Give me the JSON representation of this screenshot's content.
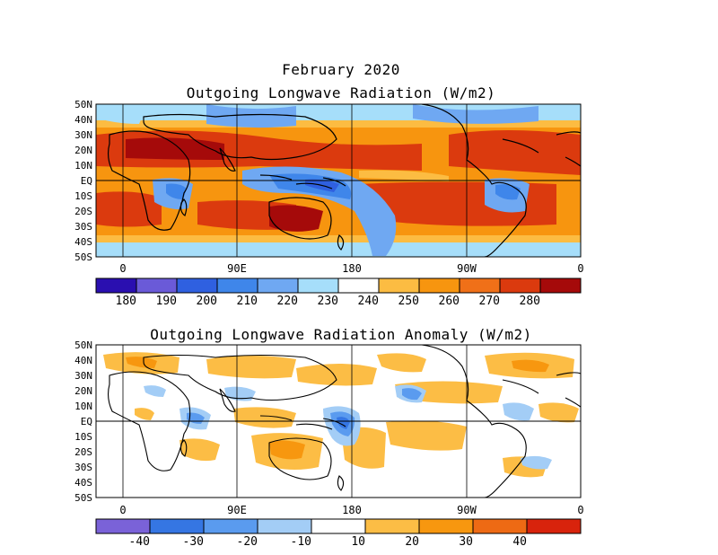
{
  "figure": {
    "month_title": "February 2020",
    "total_title": "Outgoing Longwave Radiation (W/m2)",
    "anomaly_title": "Outgoing Longwave Radiation Anomaly (W/m2)"
  },
  "latitude_labels": [
    "50N",
    "40N",
    "30N",
    "20N",
    "10N",
    "EQ",
    "10S",
    "20S",
    "30S",
    "40S",
    "50S"
  ],
  "longitude_labels": [
    "0",
    "90E",
    "180",
    "90W",
    "0"
  ],
  "total_colorbar": {
    "ticks": [
      "180",
      "190",
      "200",
      "210",
      "220",
      "230",
      "240",
      "250",
      "260",
      "270",
      "280"
    ],
    "colors": [
      "#2a0fb0",
      "#6a5ad8",
      "#2f60e0",
      "#3f86ea",
      "#6fa8f2",
      "#a6defa",
      "#ffffff",
      "#fcbc42",
      "#f7950f",
      "#f07018",
      "#db3a0e",
      "#a50a0a"
    ]
  },
  "anomaly_colorbar": {
    "ticks": [
      "-40",
      "-30",
      "-20",
      "-10",
      "10",
      "20",
      "30",
      "40"
    ],
    "colors": [
      "#7a62d8",
      "#3576e3",
      "#5a9bef",
      "#a3cdf6",
      "#ffffff",
      "#fcbd45",
      "#f7970f",
      "#ee6a14",
      "#d8230c"
    ]
  }
}
